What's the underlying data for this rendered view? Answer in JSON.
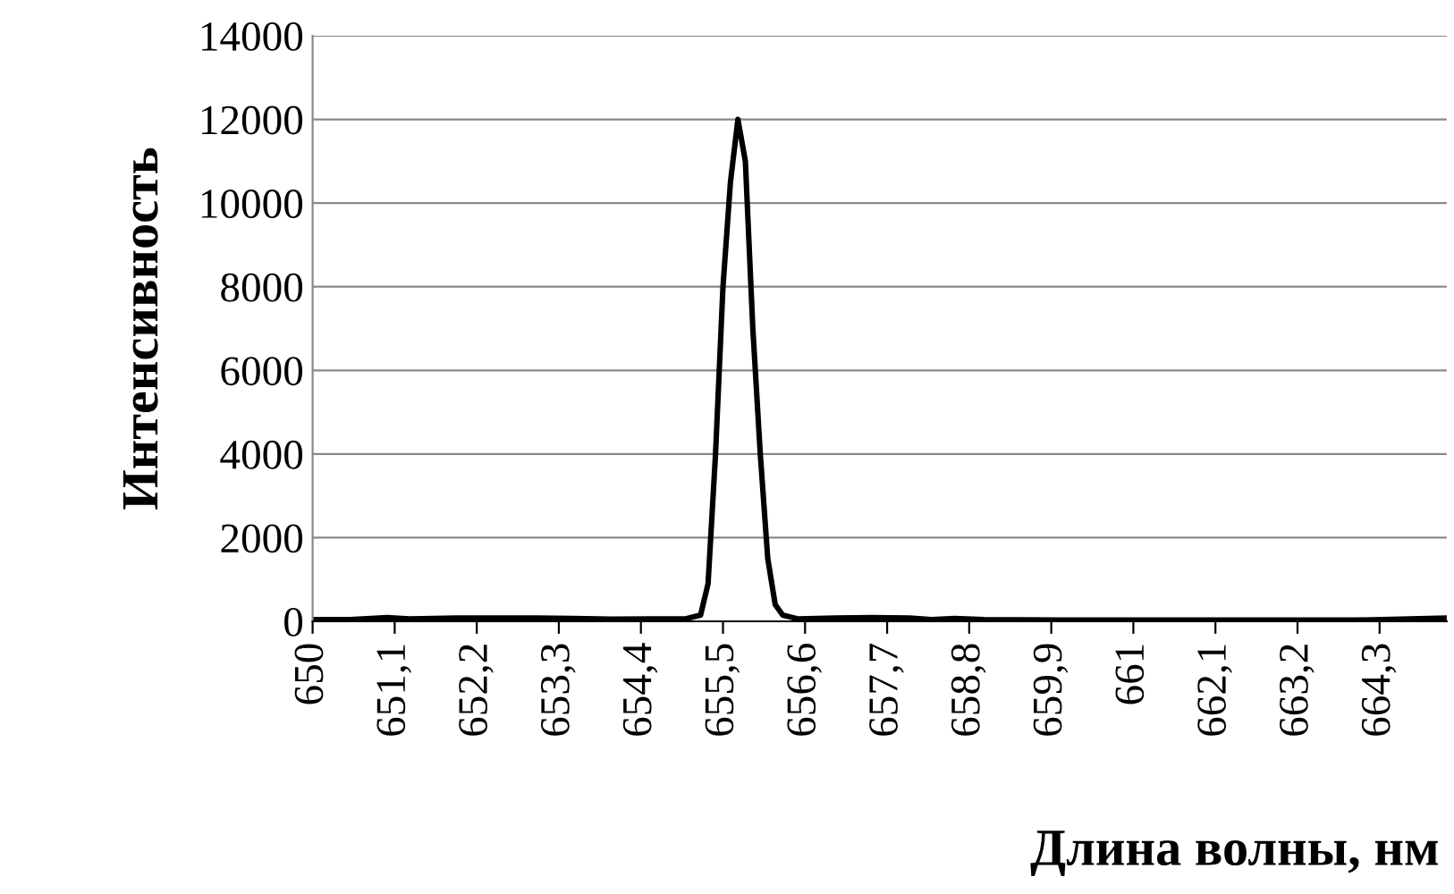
{
  "chart_data": {
    "type": "line",
    "xlabel": "Длина волны, нм",
    "ylabel": "Интенсивность",
    "series": [
      {
        "color": "#000000",
        "x": [
          650,
          650.5,
          651,
          651.3,
          652,
          652.5,
          653,
          653.5,
          654,
          654.5,
          655,
          655.2,
          655.3,
          655.4,
          655.5,
          655.6,
          655.7,
          655.8,
          655.9,
          656.0,
          656.1,
          656.2,
          656.3,
          656.5,
          657,
          657.5,
          658,
          658.3,
          658.6,
          659,
          660,
          661,
          662,
          663,
          664,
          665.2
        ],
        "values": [
          40,
          40,
          90,
          60,
          80,
          80,
          80,
          70,
          50,
          60,
          60,
          150,
          900,
          4000,
          8000,
          10500,
          12000,
          11000,
          7000,
          4000,
          1500,
          400,
          150,
          60,
          80,
          90,
          80,
          40,
          70,
          40,
          30,
          30,
          30,
          30,
          30,
          80
        ]
      }
    ],
    "xlim": [
      650,
      665.2
    ],
    "xticks": [
      650,
      {
        "value": 651.1,
        "label": "651,1"
      },
      {
        "value": 652.2,
        "label": "652,2"
      },
      {
        "value": 653.3,
        "label": "653,3"
      },
      {
        "value": 654.4,
        "label": "654,4"
      },
      {
        "value": 655.5,
        "label": "655,5"
      },
      {
        "value": 656.6,
        "label": "656,6"
      },
      {
        "value": 657.7,
        "label": "657,7"
      },
      {
        "value": 658.8,
        "label": "658,8"
      },
      {
        "value": 659.9,
        "label": "659,9"
      },
      661,
      {
        "value": 662.1,
        "label": "662,1"
      },
      {
        "value": 663.2,
        "label": "663,2"
      },
      {
        "value": 664.3,
        "label": "664,3"
      }
    ],
    "ylim": [
      0,
      14000
    ],
    "yticks": [
      0,
      2000,
      4000,
      6000,
      8000,
      10000,
      12000,
      14000
    ],
    "grid": "y",
    "marker": "none",
    "line_style": "solid",
    "legend": false
  }
}
